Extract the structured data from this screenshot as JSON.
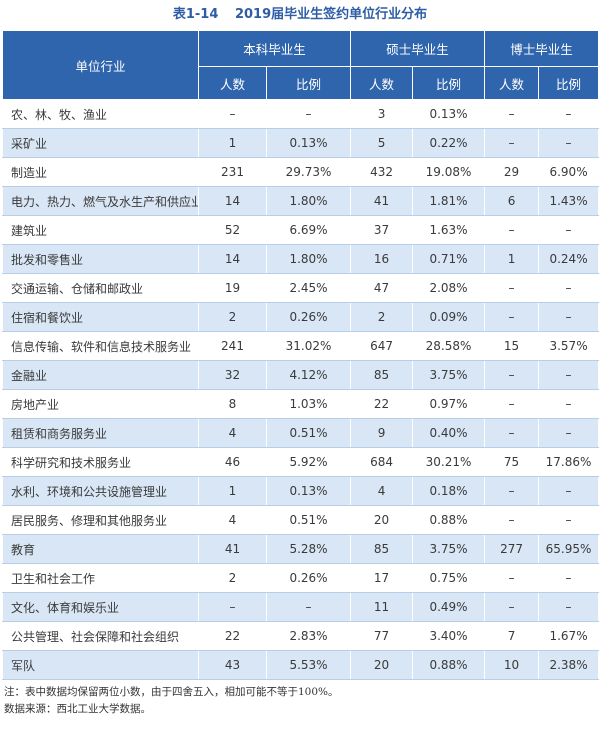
{
  "title": {
    "code": "表1-14",
    "text": "2019届毕业生签约单位行业分布"
  },
  "headers": {
    "industry": "单位行业",
    "groups": [
      "本科毕业生",
      "硕士毕业生",
      "博士毕业生"
    ],
    "sub": [
      "人数",
      "比例",
      "人数",
      "比例",
      "人数",
      "比例"
    ]
  },
  "rows": [
    [
      "农、林、牧、渔业",
      "–",
      "–",
      "3",
      "0.13%",
      "–",
      "–"
    ],
    [
      "采矿业",
      "1",
      "0.13%",
      "5",
      "0.22%",
      "–",
      "–"
    ],
    [
      "制造业",
      "231",
      "29.73%",
      "432",
      "19.08%",
      "29",
      "6.90%"
    ],
    [
      "电力、热力、燃气及水生产和供应业",
      "14",
      "1.80%",
      "41",
      "1.81%",
      "6",
      "1.43%"
    ],
    [
      "建筑业",
      "52",
      "6.69%",
      "37",
      "1.63%",
      "–",
      "–"
    ],
    [
      "批发和零售业",
      "14",
      "1.80%",
      "16",
      "0.71%",
      "1",
      "0.24%"
    ],
    [
      "交通运输、仓储和邮政业",
      "19",
      "2.45%",
      "47",
      "2.08%",
      "–",
      "–"
    ],
    [
      "住宿和餐饮业",
      "2",
      "0.26%",
      "2",
      "0.09%",
      "–",
      "–"
    ],
    [
      "信息传输、软件和信息技术服务业",
      "241",
      "31.02%",
      "647",
      "28.58%",
      "15",
      "3.57%"
    ],
    [
      "金融业",
      "32",
      "4.12%",
      "85",
      "3.75%",
      "–",
      "–"
    ],
    [
      "房地产业",
      "8",
      "1.03%",
      "22",
      "0.97%",
      "–",
      "–"
    ],
    [
      "租赁和商务服务业",
      "4",
      "0.51%",
      "9",
      "0.40%",
      "–",
      "–"
    ],
    [
      "科学研究和技术服务业",
      "46",
      "5.92%",
      "684",
      "30.21%",
      "75",
      "17.86%"
    ],
    [
      "水利、环境和公共设施管理业",
      "1",
      "0.13%",
      "4",
      "0.18%",
      "–",
      "–"
    ],
    [
      "居民服务、修理和其他服务业",
      "4",
      "0.51%",
      "20",
      "0.88%",
      "–",
      "–"
    ],
    [
      "教育",
      "41",
      "5.28%",
      "85",
      "3.75%",
      "277",
      "65.95%"
    ],
    [
      "卫生和社会工作",
      "2",
      "0.26%",
      "17",
      "0.75%",
      "–",
      "–"
    ],
    [
      "文化、体育和娱乐业",
      "–",
      "–",
      "11",
      "0.49%",
      "–",
      "–"
    ],
    [
      "公共管理、社会保障和社会组织",
      "22",
      "2.83%",
      "77",
      "3.40%",
      "7",
      "1.67%"
    ],
    [
      "军队",
      "43",
      "5.53%",
      "20",
      "0.88%",
      "10",
      "2.38%"
    ]
  ],
  "notes": {
    "note": "注：表中数据均保留两位小数，由于四舍五入，相加可能不等于100%。",
    "source": "数据来源：西北工业大学数据。"
  }
}
